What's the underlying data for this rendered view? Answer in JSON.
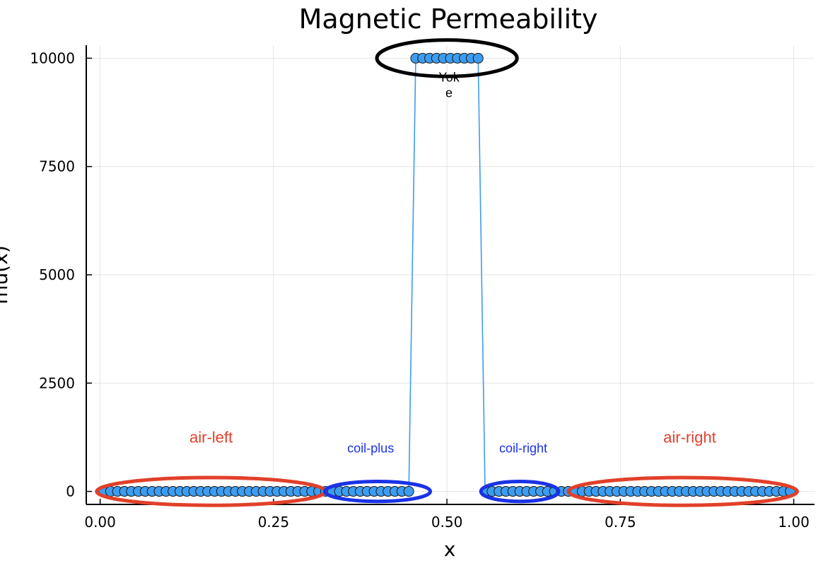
{
  "chart_data": {
    "type": "scatter",
    "title": "Magnetic Permeability",
    "xlabel": "x",
    "ylabel": "mu(x)",
    "xlim": [
      -0.02,
      1.03
    ],
    "ylim": [
      -300,
      10300
    ],
    "xticks": [
      0.0,
      0.25,
      0.5,
      0.75,
      1.0
    ],
    "xtick_labels": [
      "0.00",
      "0.25",
      "0.50",
      "0.75",
      "1.00"
    ],
    "yticks": [
      0,
      2500,
      5000,
      7500,
      10000
    ],
    "ytick_labels": [
      "0",
      "2500",
      "5000",
      "7500",
      "10000"
    ],
    "grid": true,
    "series": [
      {
        "color": "#3c9cf0",
        "x_start": 0.005,
        "x_step": 0.01,
        "count": 100,
        "regions": [
          {
            "x_min": 0.0,
            "x_max": 0.45,
            "value": 1
          },
          {
            "x_min": 0.45,
            "x_max": 0.55,
            "value": 10000
          },
          {
            "x_min": 0.55,
            "x_max": 1.0,
            "value": 1
          }
        ]
      }
    ],
    "annotations": [
      {
        "text": "Yoke",
        "color": "#000000",
        "center_x": 0.5,
        "center_y": 10000,
        "rx": 0.101,
        "ry": 420,
        "lines": [
          "Yok",
          "e"
        ],
        "label_x": 0.503,
        "label_y": 9100
      },
      {
        "text": "air-left",
        "color": "#e1402a",
        "center_x": 0.16,
        "center_y": 0,
        "rx": 0.165,
        "ry": 320,
        "label_x": 0.16,
        "label_y": 1130
      },
      {
        "text": "coil-plus",
        "color": "#1a32e6",
        "center_x": 0.4,
        "center_y": 0,
        "rx": 0.076,
        "ry": 230,
        "label_x": 0.39,
        "label_y": 900
      },
      {
        "text": "coil-right",
        "color": "#1a32e6",
        "center_x": 0.605,
        "center_y": 0,
        "rx": 0.056,
        "ry": 230,
        "label_x": 0.61,
        "label_y": 900
      },
      {
        "text": "air-right",
        "color": "#e1402a",
        "center_x": 0.84,
        "center_y": 0,
        "rx": 0.165,
        "ry": 320,
        "label_x": 0.85,
        "label_y": 1130
      }
    ]
  }
}
